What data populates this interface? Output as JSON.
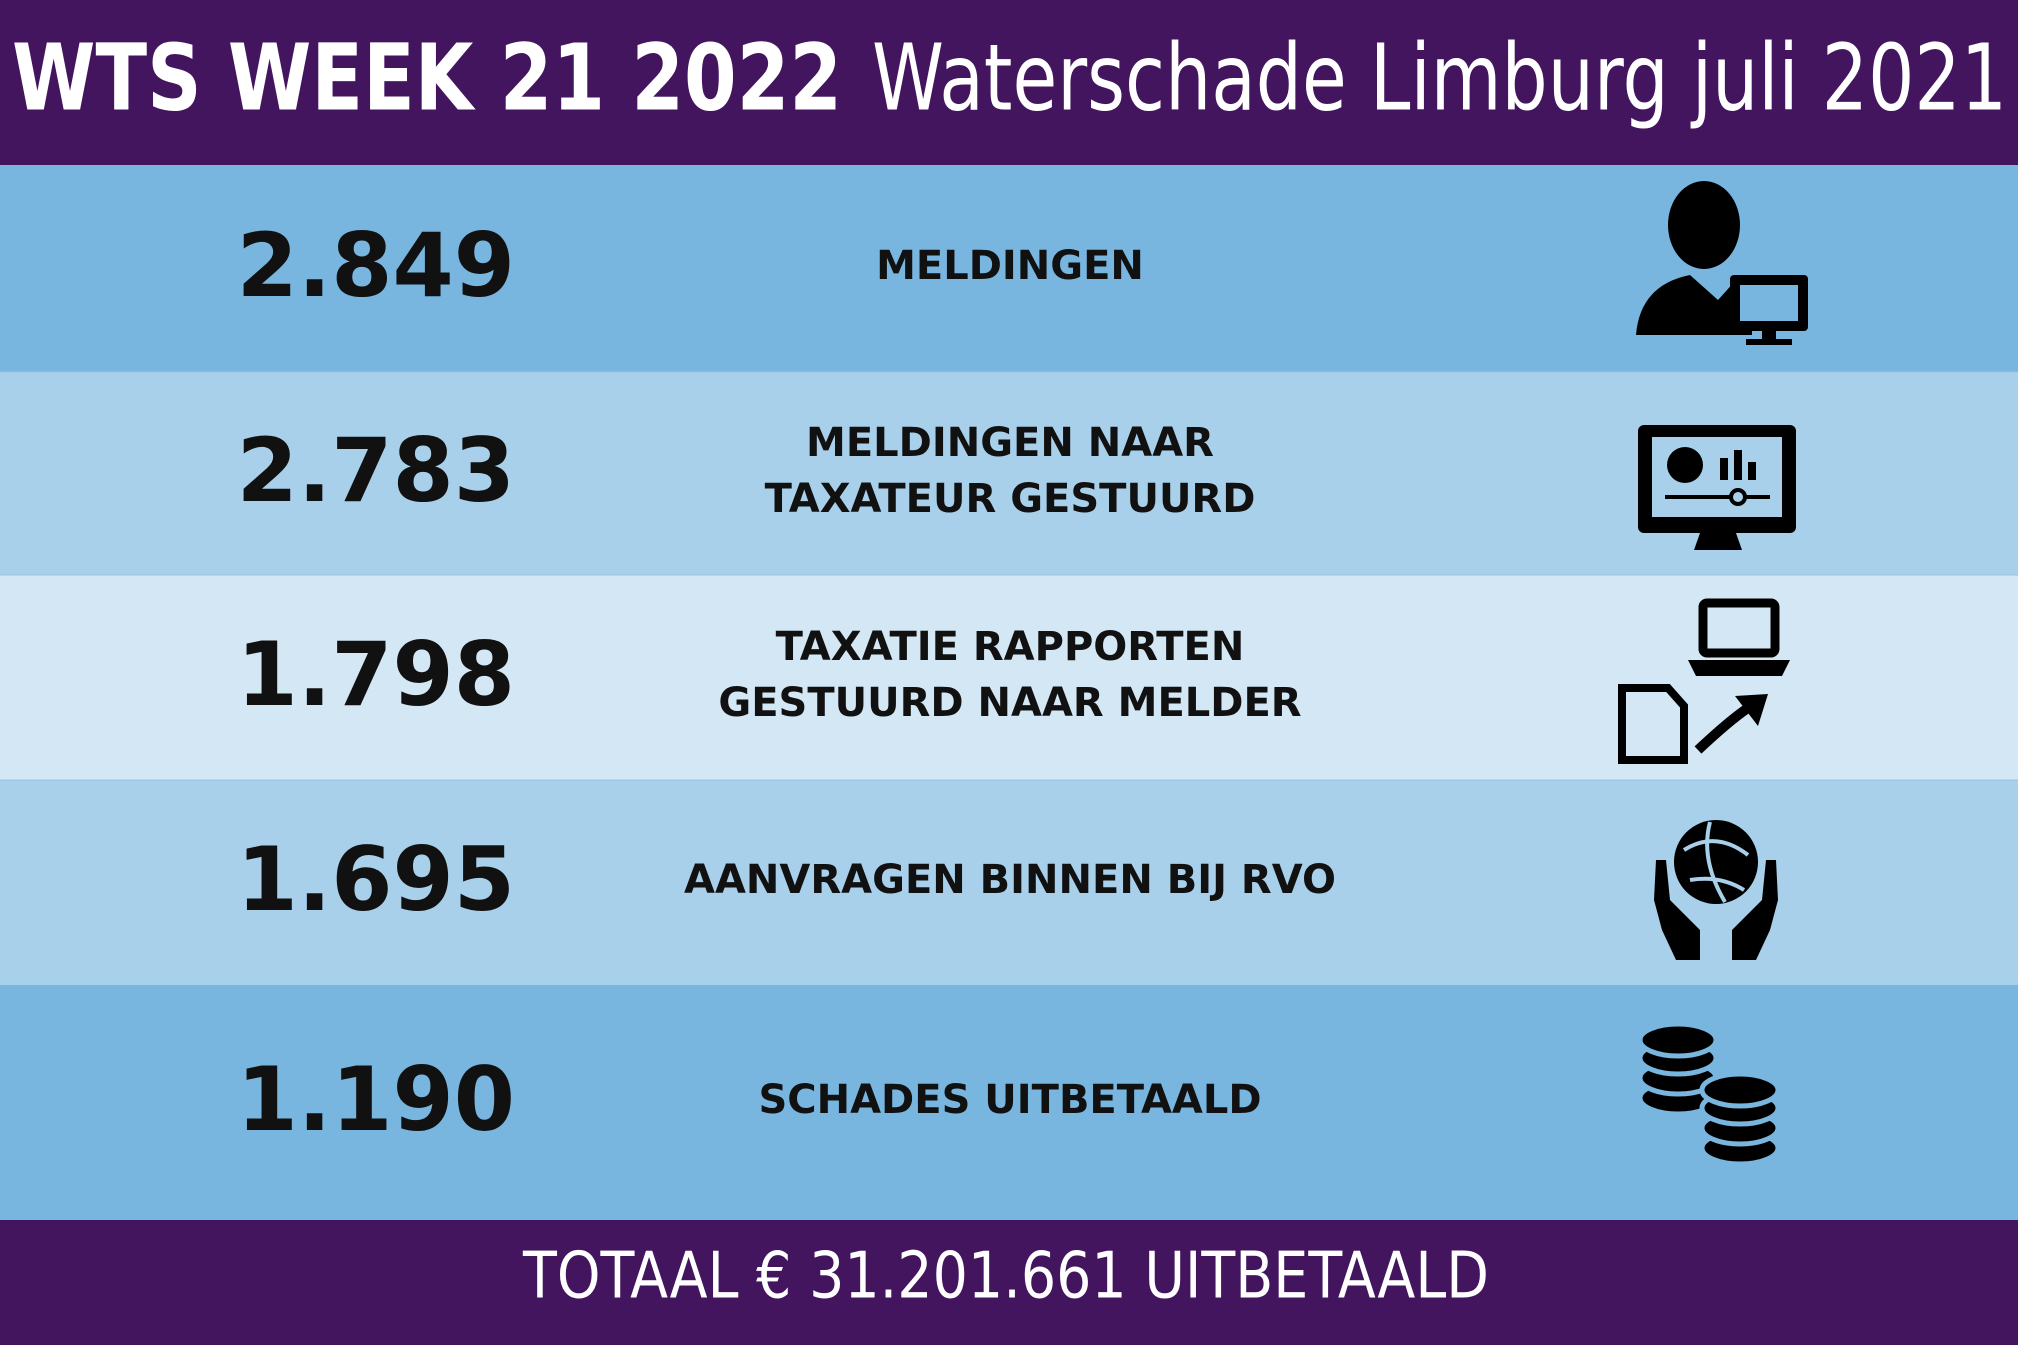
{
  "header": {
    "title_bold": "WTS WEEK 21 2022",
    "title_rest": "Waterschade Limburg juli 2021"
  },
  "rows": [
    {
      "value": "2.849",
      "label": [
        "MELDINGEN"
      ]
    },
    {
      "value": "2.783",
      "label": [
        "MELDINGEN NAAR",
        "TAXATEUR GESTUURD"
      ]
    },
    {
      "value": "1.798",
      "label": [
        "TAXATIE RAPPORTEN",
        "GESTUURD NAAR MELDER"
      ]
    },
    {
      "value": "1.695",
      "label": [
        "AANVRAGEN BINNEN BIJ RVO"
      ]
    },
    {
      "value": "1.190",
      "label": [
        "SCHADES UITBETAALD"
      ]
    }
  ],
  "footer": "TOTAAL € 31.201.661 UITBETAALD"
}
